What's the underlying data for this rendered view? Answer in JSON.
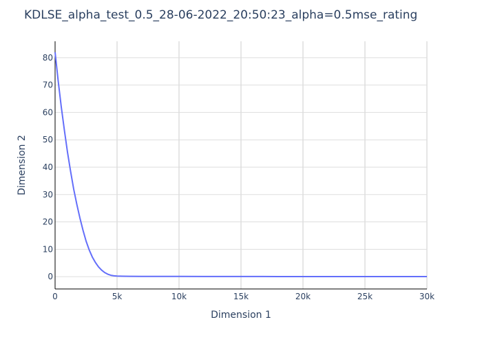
{
  "chart_data": {
    "type": "line",
    "title": "KDLSE_alpha_test_0.5_28-06-2022_20:50:23_alpha=0.5mse_rating",
    "xlabel": "Dimension 1",
    "ylabel": "Dimension 2",
    "xlim": [
      0,
      30000
    ],
    "ylim": [
      -4.5,
      86
    ],
    "x_ticks": [
      0,
      5000,
      10000,
      15000,
      20000,
      25000,
      30000
    ],
    "x_tick_labels": [
      "0",
      "5k",
      "10k",
      "15k",
      "20k",
      "25k",
      "30k"
    ],
    "y_ticks": [
      0,
      10,
      20,
      30,
      40,
      50,
      60,
      70,
      80
    ],
    "y_tick_labels": [
      "0",
      "10",
      "20",
      "30",
      "40",
      "50",
      "60",
      "70",
      "80"
    ],
    "grid": true,
    "legend": false,
    "series": [
      {
        "color": "#636efa",
        "x": [
          0,
          250,
          500,
          750,
          1000,
          1250,
          1500,
          1750,
          2000,
          2250,
          2500,
          2750,
          3000,
          3250,
          3500,
          3750,
          4000,
          4250,
          4500,
          4750,
          5000,
          5500,
          6000,
          7000,
          8000,
          10000,
          12000,
          15000,
          18000,
          20000,
          22000,
          25000,
          28000,
          30000
        ],
        "y": [
          82,
          71.5,
          62,
          53.5,
          45.5,
          38.5,
          32,
          26.5,
          21.5,
          17,
          13,
          9.8,
          7.2,
          5.2,
          3.6,
          2.4,
          1.5,
          0.9,
          0.5,
          0.3,
          0.2,
          0.15,
          0.12,
          0.1,
          0.1,
          0.08,
          0.06,
          0.05,
          0.04,
          0.03,
          0.02,
          0.02,
          0.01,
          0.01
        ]
      }
    ]
  }
}
